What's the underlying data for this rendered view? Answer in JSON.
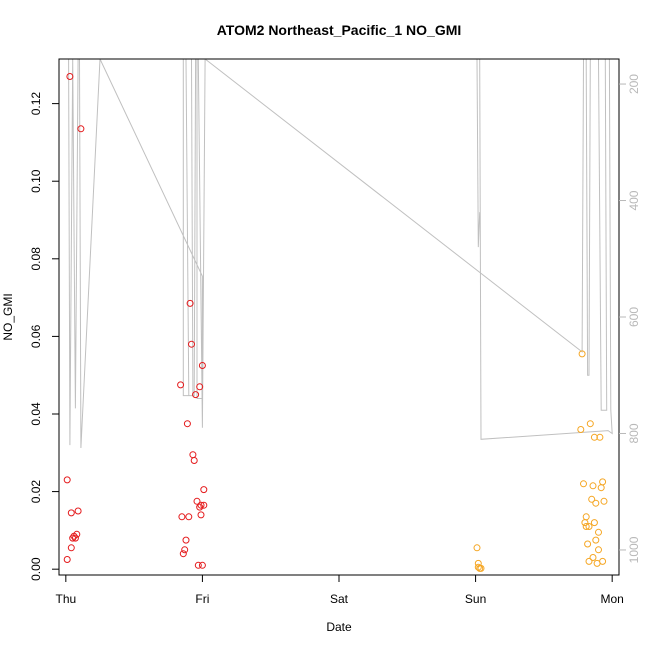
{
  "chart_data": {
    "type": "scatter",
    "title": "ATOM2 Northeast_Pacific_1 NO_GMI",
    "xlabel": "Date",
    "ylabel": "NO_GMI",
    "x_unit": "day",
    "xlim": [
      -0.05,
      4.05
    ],
    "ylim": [
      -0.0015,
      0.1315
    ],
    "x_ticks": [
      0,
      1,
      2,
      3,
      4
    ],
    "x_tick_labels": [
      "Thu",
      "Fri",
      "Sat",
      "Sun",
      "Mon"
    ],
    "y_ticks": [
      0.0,
      0.02,
      0.04,
      0.06,
      0.08,
      0.1,
      0.12
    ],
    "y_tick_labels": [
      "0.00",
      "0.02",
      "0.04",
      "0.06",
      "0.08",
      "0.10",
      "0.12"
    ],
    "y2_reversed": true,
    "y2lim": [
      1043,
      157
    ],
    "y2_ticks": [
      200,
      400,
      600,
      800,
      1000
    ],
    "y2_tick_labels": [
      "200",
      "400",
      "600",
      "800",
      "1000"
    ],
    "grid": false,
    "colors": {
      "series_red": "#e41a1c",
      "series_orange": "#f5a623",
      "pressure_line": "#c0c0c0",
      "axis": "#000000",
      "right_axis": "#b8b8b8"
    },
    "series": [
      {
        "color": "#e41a1c",
        "points": [
          [
            0.03,
            0.127
          ],
          [
            0.11,
            0.1135
          ],
          [
            0.01,
            0.023
          ],
          [
            0.04,
            0.0145
          ],
          [
            0.09,
            0.015
          ],
          [
            0.06,
            0.0085
          ],
          [
            0.08,
            0.009
          ],
          [
            0.07,
            0.008
          ],
          [
            0.05,
            0.008
          ],
          [
            0.04,
            0.0055
          ],
          [
            0.01,
            0.0025
          ],
          [
            0.84,
            0.0475
          ],
          [
            0.85,
            0.0135
          ],
          [
            0.86,
            0.004
          ],
          [
            0.87,
            0.005
          ],
          [
            0.88,
            0.0075
          ],
          [
            0.9,
            0.0135
          ],
          [
            0.89,
            0.0375
          ],
          [
            0.91,
            0.0685
          ],
          [
            0.92,
            0.058
          ],
          [
            0.93,
            0.0295
          ],
          [
            0.94,
            0.028
          ],
          [
            0.95,
            0.045
          ],
          [
            0.96,
            0.0175
          ],
          [
            0.97,
            0.001
          ],
          [
            0.98,
            0.047
          ],
          [
            0.99,
            0.0165
          ],
          [
            0.98,
            0.016
          ],
          [
            0.99,
            0.014
          ],
          [
            1.0,
            0.001
          ],
          [
            1.01,
            0.0165
          ],
          [
            1.0,
            0.0525
          ],
          [
            1.01,
            0.0205
          ]
        ]
      },
      {
        "color": "#f5a623",
        "points": [
          [
            3.01,
            0.0055
          ],
          [
            3.02,
            0.0015
          ],
          [
            3.02,
            0.0005
          ],
          [
            3.03,
            0.0002
          ],
          [
            3.04,
            0.0002
          ],
          [
            3.78,
            0.0555
          ],
          [
            3.77,
            0.036
          ],
          [
            3.79,
            0.022
          ],
          [
            3.8,
            0.012
          ],
          [
            3.81,
            0.0135
          ],
          [
            3.81,
            0.011
          ],
          [
            3.82,
            0.0065
          ],
          [
            3.83,
            0.011
          ],
          [
            3.84,
            0.0375
          ],
          [
            3.83,
            0.002
          ],
          [
            3.85,
            0.018
          ],
          [
            3.86,
            0.0215
          ],
          [
            3.86,
            0.003
          ],
          [
            3.87,
            0.034
          ],
          [
            3.87,
            0.012
          ],
          [
            3.88,
            0.017
          ],
          [
            3.88,
            0.0075
          ],
          [
            3.89,
            0.0015
          ],
          [
            3.9,
            0.0095
          ],
          [
            3.9,
            0.005
          ],
          [
            3.91,
            0.034
          ],
          [
            3.92,
            0.021
          ],
          [
            3.93,
            0.0225
          ],
          [
            3.94,
            0.0175
          ],
          [
            3.93,
            0.002
          ]
        ]
      }
    ],
    "pressure_line": [
      [
        0.0,
        157
      ],
      [
        0.02,
        157
      ],
      [
        0.03,
        820
      ],
      [
        0.05,
        157
      ],
      [
        0.07,
        757
      ],
      [
        0.09,
        157
      ],
      [
        0.1,
        157
      ],
      [
        0.11,
        825
      ],
      [
        0.25,
        157
      ],
      [
        1.0,
        530
      ],
      [
        1.0,
        740
      ],
      [
        0.96,
        740
      ],
      [
        0.96,
        157
      ],
      [
        0.95,
        157
      ],
      [
        0.94,
        735
      ],
      [
        0.86,
        735
      ],
      [
        0.86,
        157
      ],
      [
        0.88,
        157
      ],
      [
        0.9,
        735
      ],
      [
        0.93,
        735
      ],
      [
        0.92,
        157
      ],
      [
        0.93,
        157
      ],
      [
        0.95,
        157
      ],
      [
        0.97,
        157
      ],
      [
        1.0,
        790
      ],
      [
        1.02,
        157
      ],
      [
        3.78,
        660
      ],
      [
        3.79,
        157
      ],
      [
        3.81,
        157
      ],
      [
        3.82,
        700
      ],
      [
        3.83,
        700
      ],
      [
        3.84,
        157
      ],
      [
        3.9,
        157
      ],
      [
        3.92,
        760
      ],
      [
        3.96,
        760
      ],
      [
        3.95,
        157
      ],
      [
        3.98,
        157
      ],
      [
        3.99,
        760
      ],
      [
        4.0,
        800
      ],
      [
        3.97,
        795
      ],
      [
        3.04,
        810
      ],
      [
        3.03,
        157
      ],
      [
        3.02,
        157
      ],
      [
        3.01,
        157
      ],
      [
        3.02,
        480
      ],
      [
        3.03,
        420
      ]
    ]
  }
}
